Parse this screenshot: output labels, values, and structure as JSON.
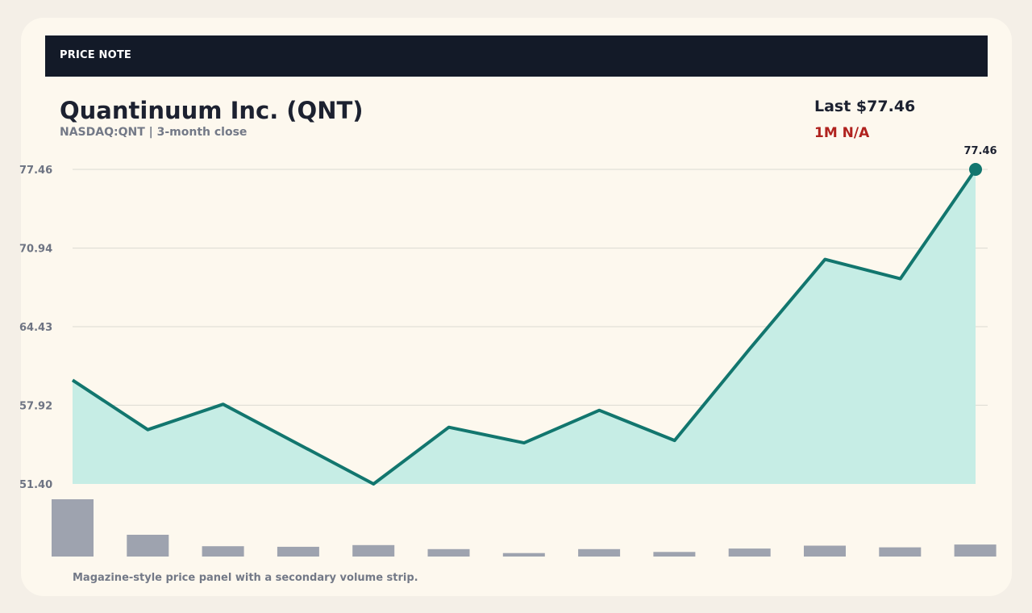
{
  "banner": {
    "label": "PRICE NOTE"
  },
  "header": {
    "title": "Quantinuum Inc. (QNT)",
    "subtitle": "NASDAQ:QNT | 3-month close",
    "last_price": "Last $77.46",
    "change": "1M N/A"
  },
  "footnote": "Magazine-style price panel with a secondary volume strip.",
  "colors": {
    "line": "#12766e",
    "area": "#c6ede5",
    "volume": "#9ea3af",
    "grid": "#dcdad3",
    "change_text": "#b0221e",
    "banner_bg": "#131a28"
  },
  "chart_data": {
    "type": "line",
    "title": "Quantinuum Inc. (QNT)",
    "ylim": [
      51.4,
      77.46
    ],
    "yticks": [
      "51.40",
      "57.92",
      "64.43",
      "70.94",
      "77.46"
    ],
    "series": [
      {
        "values": [
          60.0,
          55.9,
          58.0,
          54.7,
          51.4,
          56.1,
          54.8,
          57.5,
          55.0,
          62.6,
          70.0,
          68.4,
          77.46
        ]
      }
    ],
    "end_label": "77.46",
    "volume": {
      "values": [
        100,
        38,
        18,
        17,
        20,
        13,
        6,
        13,
        8,
        14,
        19,
        16,
        21
      ]
    },
    "grid": true
  }
}
